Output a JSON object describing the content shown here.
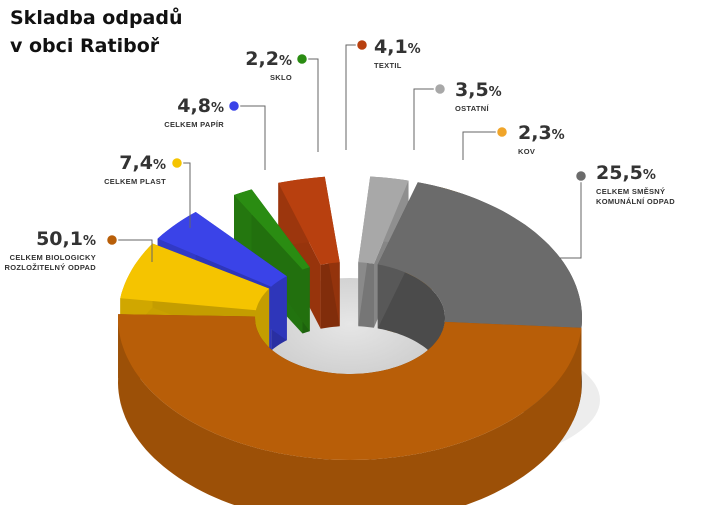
{
  "chart_data": {
    "type": "pie",
    "title_lines": [
      "Skladba odpadů",
      "v obci Ratiboř"
    ],
    "unit": "%",
    "categories": [
      "CELKEM SMĚSNÝ KOMUNÁLNÍ ODPAD",
      "CELKEM BIOLOGICKY ROZLOŽITELNÝ ODPAD",
      "CELKEM PLAST",
      "CELKEM PAPÍR",
      "SKLO",
      "TEXTIL",
      "OSTATNÍ",
      "KOV"
    ],
    "category_lines": [
      [
        "CELKEM SMĚSNÝ",
        "KOMUNÁLNÍ ODPAD"
      ],
      [
        "CELKEM BIOLOGICKY",
        "ROZLOŽITELNÝ ODPAD"
      ],
      [
        "CELKEM PLAST"
      ],
      [
        "CELKEM PAPÍR"
      ],
      [
        "SKLO"
      ],
      [
        "TEXTIL"
      ],
      [
        "OSTATNÍ"
      ],
      [
        "KOV"
      ]
    ],
    "values": [
      25.5,
      50.1,
      7.4,
      4.8,
      2.2,
      4.1,
      3.5,
      2.3
    ],
    "value_labels": [
      "25,5",
      "50,1",
      "7,4",
      "4,8",
      "2,2",
      "4,1",
      "3,5",
      "2,3"
    ],
    "colors": [
      "#6b6b6b",
      "#b85e08",
      "#f5c400",
      "#3a43e8",
      "#2a8c12",
      "#b8400f",
      "#a8a8a8",
      "#f0a52a"
    ],
    "style": "3d-donut"
  }
}
